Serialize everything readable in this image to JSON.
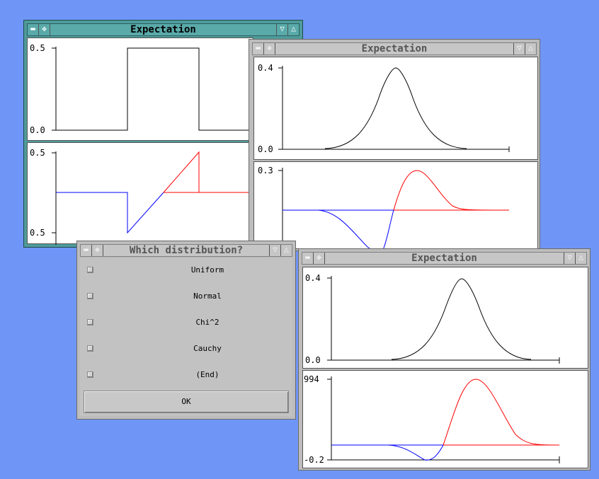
{
  "window_title": "Expectation",
  "dialog": {
    "title": "Which distribution?",
    "options": [
      "Uniform",
      "Normal",
      "Chi^2",
      "Cauchy",
      "(End)"
    ],
    "ok_label": "OK"
  },
  "plots": {
    "uniform_density": {
      "y_max_label": "0.5",
      "y_min_label": "0.0"
    },
    "uniform_integrand": {
      "y_max_label": "0.5",
      "y_min_label": "0.5"
    },
    "normal_density": {
      "y_max_label": "0.4",
      "y_min_label": "0.0"
    },
    "normal_integrand": {
      "y_max_label": "0.3"
    },
    "chi_density": {
      "y_max_label": "0.4",
      "y_min_label": "0.0"
    },
    "chi_integrand": {
      "y_max_label": "994",
      "y_min_label": "-0.2"
    }
  },
  "colors": {
    "desktop": "#6f96f6",
    "active_frame": "#4f9b9b",
    "inactive_frame": "#bdbdbd",
    "curve": "#000000",
    "negative_part": "#0000ff",
    "positive_part": "#ff0000"
  },
  "icons": [
    "minimize-icon",
    "move-icon",
    "lower-icon",
    "raise-icon"
  ]
}
